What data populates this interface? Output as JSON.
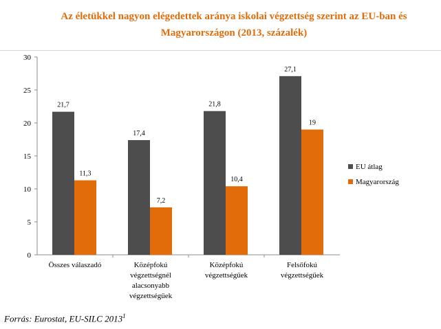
{
  "title_line1": "Az életükkel nagyon elégedettek aránya iskolai végzettség szerint az EU-ban és",
  "title_line2": "Magyarországon (2013, százalék)",
  "source": "Forrás: Eurostat, EU-SILC 2013",
  "source_footnote": "1",
  "colors": {
    "eu": "#4d4d4d",
    "hu": "#e36c0a",
    "title": "#e36c0a"
  },
  "chart_data": {
    "type": "bar",
    "title": "Az életükkel nagyon elégedettek aránya iskolai végzettség szerint az EU-ban és Magyarországon (2013, százalék)",
    "categories": [
      [
        "Összes válaszadó"
      ],
      [
        "Középfokú",
        "végzettségnél",
        "alacsonyabb",
        "végzettségűek"
      ],
      [
        "Középfokú",
        "végzettségűek"
      ],
      [
        "Felsőfokú",
        "végzettségűek"
      ]
    ],
    "series": [
      {
        "name": "EU átlag",
        "values": [
          21.7,
          17.4,
          21.8,
          27.1
        ],
        "labels": [
          "21,7",
          "17,4",
          "21,8",
          "27,1"
        ]
      },
      {
        "name": "Magyarország",
        "values": [
          11.3,
          7.2,
          10.4,
          19
        ],
        "labels": [
          "11,3",
          "7,2",
          "10,4",
          "19"
        ]
      }
    ],
    "ylim": [
      0,
      30
    ],
    "yticks": [
      "0",
      "5",
      "10",
      "15",
      "20",
      "25",
      "30"
    ],
    "legend_position": "right",
    "grid": false
  }
}
